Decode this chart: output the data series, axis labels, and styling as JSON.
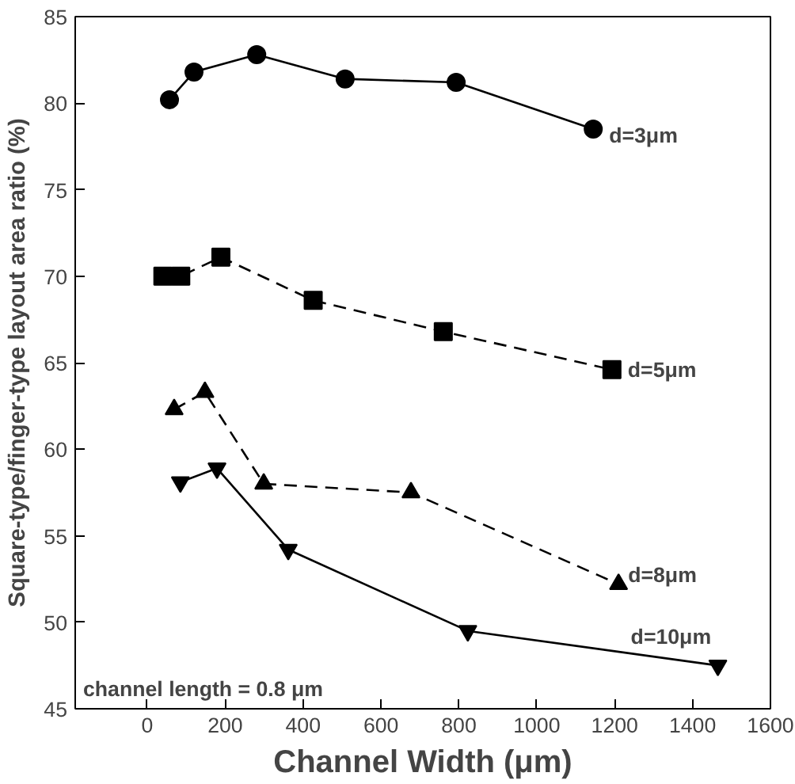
{
  "chart_data": {
    "type": "line",
    "xlabel": "Channel Width (μm)",
    "ylabel": "Square-type/finger-type layout area ratio (%)",
    "xlim": [
      -185,
      1600
    ],
    "ylim": [
      45,
      85
    ],
    "xticks": [
      0,
      200,
      400,
      600,
      800,
      1000,
      1200,
      1400,
      1600
    ],
    "yticks": [
      45,
      50,
      55,
      60,
      65,
      70,
      75,
      80,
      85
    ],
    "grid": false,
    "annotations": [
      "channel length = 0.8 μm"
    ],
    "series": [
      {
        "name": "d=3μm",
        "color": "#000000",
        "marker": "circle",
        "line_style": "solid",
        "x": [
          57,
          120,
          281,
          508,
          793,
          1145
        ],
        "values": [
          80.2,
          81.8,
          82.8,
          81.4,
          81.2,
          78.5
        ]
      },
      {
        "name": "d=5μm",
        "color": "#000000",
        "marker": "square",
        "line_style": "dashed",
        "x": [
          40,
          86,
          189,
          426,
          760,
          1193
        ],
        "values": [
          70.0,
          70.0,
          71.1,
          68.6,
          66.8,
          64.6
        ]
      },
      {
        "name": "d=8μm",
        "color": "#000000",
        "marker": "triangle",
        "line_style": "dashed",
        "x": [
          69,
          148,
          299,
          677,
          1210
        ],
        "values": [
          62.3,
          63.3,
          58.0,
          57.5,
          52.2
        ]
      },
      {
        "name": "d=10μm",
        "color": "#000000",
        "marker": "triangle",
        "line_style": "solid",
        "x": [
          85,
          179,
          362,
          823,
          1465
        ],
        "values": [
          58.1,
          58.9,
          54.2,
          49.5,
          47.5
        ]
      }
    ]
  }
}
